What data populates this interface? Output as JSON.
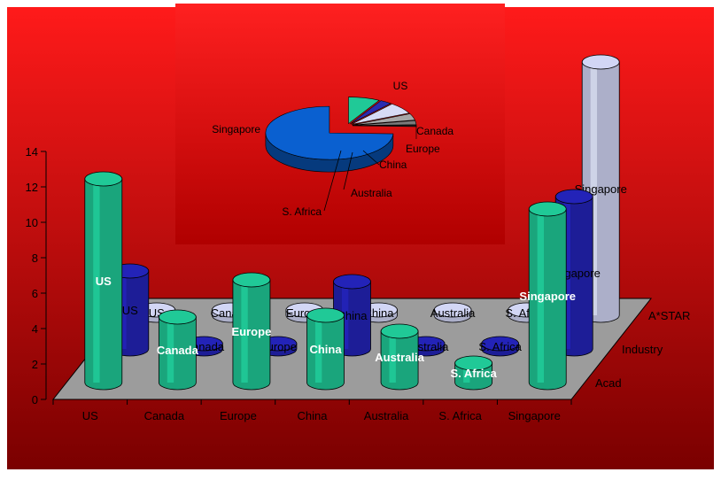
{
  "colors": {
    "background_top": "#ff1a1a",
    "background_bottom": "#7a0000",
    "floor": "#9c9c9c",
    "acad": "#20c997",
    "industry": "#2323b8",
    "astar": "#d2d6f5",
    "pie_us": "#20c997",
    "pie_canada": "#2b2bb0",
    "pie_europe": "#d7dbf5",
    "pie_china": "#a7a7a7",
    "pie_australia": "#7a7a7a",
    "pie_safrica": "#222222",
    "pie_singapore": "#0a60d0"
  },
  "chart_data": [
    {
      "type": "bar",
      "subtype": "3d-cylinder",
      "categories": [
        "US",
        "Canada",
        "Europe",
        "China",
        "Australia",
        "S. Africa",
        "Singapore"
      ],
      "series": [
        {
          "name": "Acad",
          "values": [
            11.5,
            3.7,
            5.8,
            3.8,
            2.9,
            1.1,
            9.8
          ]
        },
        {
          "name": "Industry",
          "values": [
            4.4,
            0.3,
            0.3,
            3.8,
            0.3,
            0.3,
            8.6
          ]
        },
        {
          "name": "A*STAR",
          "values": [
            0.3,
            0.3,
            0.3,
            0.3,
            0.3,
            0.3,
            14.3
          ]
        }
      ],
      "ylim": [
        0,
        14
      ],
      "yticks": [
        "0",
        "2",
        "4",
        "6",
        "8",
        "10",
        "12",
        "14"
      ],
      "title": "",
      "xlabel": "",
      "ylabel": ""
    },
    {
      "type": "pie",
      "subtype": "3d-exploded",
      "labels": [
        "US",
        "Canada",
        "Europe",
        "China",
        "Australia",
        "S. Africa",
        "Singapore"
      ],
      "values": [
        8,
        3,
        7,
        4,
        2.5,
        1,
        74.5
      ],
      "title": ""
    }
  ]
}
